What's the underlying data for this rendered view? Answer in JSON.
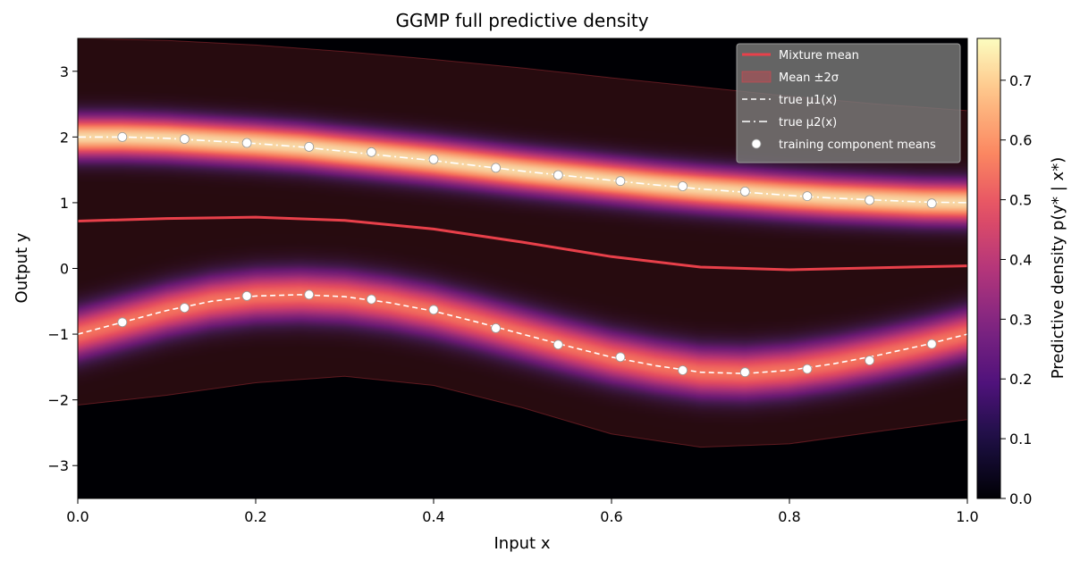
{
  "chart_data": {
    "type": "heatmap",
    "title": "GGMP full predictive density",
    "xlabel": "Input x",
    "ylabel": "Output y",
    "colorbar_label": "Predictive density p(y* | x*)",
    "colormap": "magma",
    "xlim": [
      0.0,
      1.0
    ],
    "ylim": [
      -3.5,
      3.5
    ],
    "clim": [
      0.0,
      0.77
    ],
    "x_ticks": [
      0.0,
      0.2,
      0.4,
      0.6,
      0.8,
      1.0
    ],
    "x_tick_labels": [
      "0.0",
      "0.2",
      "0.4",
      "0.6",
      "0.8",
      "1.0"
    ],
    "y_ticks": [
      -3,
      -2,
      -1,
      0,
      1,
      2,
      3
    ],
    "y_tick_labels": [
      "−3",
      "−2",
      "−1",
      "0",
      "1",
      "2",
      "3"
    ],
    "colorbar_ticks": [
      0.0,
      0.1,
      0.2,
      0.3,
      0.4,
      0.5,
      0.6,
      0.7
    ],
    "colorbar_tick_labels": [
      "0.0",
      "0.1",
      "0.2",
      "0.3",
      "0.4",
      "0.5",
      "0.6",
      "0.7"
    ],
    "legend_position": "top-right",
    "legend": [
      {
        "label": "Mixture mean",
        "style": "solid-line",
        "color": "#e8404a"
      },
      {
        "label": "Mean ±2σ",
        "style": "patch",
        "color": "#e8404a"
      },
      {
        "label": "true μ1(x)",
        "style": "dashed-line",
        "color": "#ffffff"
      },
      {
        "label": "true μ2(x)",
        "style": "dashdot-line",
        "color": "#ffffff"
      },
      {
        "label": "training component means",
        "style": "marker",
        "color": "#ffffff"
      }
    ],
    "series": [
      {
        "name": "Mixture mean",
        "type": "line",
        "x": [
          0.0,
          0.1,
          0.2,
          0.3,
          0.4,
          0.5,
          0.6,
          0.7,
          0.8,
          0.9,
          1.0
        ],
        "y": [
          0.72,
          0.76,
          0.78,
          0.73,
          0.6,
          0.4,
          0.18,
          0.02,
          -0.02,
          0.01,
          0.04
        ]
      },
      {
        "name": "Mean ±2σ",
        "type": "band",
        "x": [
          0.0,
          0.1,
          0.2,
          0.3,
          0.4,
          0.5,
          0.6,
          0.7,
          0.8,
          0.9,
          1.0
        ],
        "upper": [
          3.5,
          3.47,
          3.4,
          3.3,
          3.18,
          3.05,
          2.9,
          2.76,
          2.62,
          2.5,
          2.4
        ],
        "lower": [
          -2.08,
          -1.93,
          -1.74,
          -1.64,
          -1.78,
          -2.12,
          -2.52,
          -2.72,
          -2.67,
          -2.48,
          -2.3
        ]
      },
      {
        "name": "true μ1(x)",
        "type": "line",
        "x": [
          0.0,
          0.05,
          0.1,
          0.15,
          0.2,
          0.25,
          0.3,
          0.35,
          0.4,
          0.45,
          0.5,
          0.55,
          0.6,
          0.65,
          0.7,
          0.75,
          0.8,
          0.85,
          0.9,
          0.95,
          1.0
        ],
        "y": [
          -1.0,
          -0.82,
          -0.64,
          -0.5,
          -0.42,
          -0.4,
          -0.43,
          -0.52,
          -0.65,
          -0.82,
          -1.0,
          -1.18,
          -1.35,
          -1.48,
          -1.58,
          -1.6,
          -1.55,
          -1.45,
          -1.32,
          -1.17,
          -1.0
        ]
      },
      {
        "name": "true μ2(x)",
        "type": "line",
        "x": [
          0.0,
          0.05,
          0.1,
          0.15,
          0.2,
          0.25,
          0.3,
          0.35,
          0.4,
          0.45,
          0.5,
          0.55,
          0.6,
          0.65,
          0.7,
          0.75,
          0.8,
          0.85,
          0.9,
          0.95,
          1.0
        ],
        "y": [
          2.0,
          2.0,
          1.98,
          1.94,
          1.9,
          1.85,
          1.78,
          1.71,
          1.64,
          1.56,
          1.48,
          1.41,
          1.34,
          1.27,
          1.21,
          1.16,
          1.11,
          1.07,
          1.04,
          1.01,
          1.0
        ]
      },
      {
        "name": "training component means",
        "type": "scatter",
        "points": [
          {
            "x": 0.05,
            "y": 2.0
          },
          {
            "x": 0.12,
            "y": 1.97
          },
          {
            "x": 0.19,
            "y": 1.91
          },
          {
            "x": 0.26,
            "y": 1.85
          },
          {
            "x": 0.33,
            "y": 1.77
          },
          {
            "x": 0.4,
            "y": 1.66
          },
          {
            "x": 0.47,
            "y": 1.53
          },
          {
            "x": 0.54,
            "y": 1.42
          },
          {
            "x": 0.61,
            "y": 1.33
          },
          {
            "x": 0.68,
            "y": 1.25
          },
          {
            "x": 0.75,
            "y": 1.17
          },
          {
            "x": 0.82,
            "y": 1.1
          },
          {
            "x": 0.89,
            "y": 1.04
          },
          {
            "x": 0.96,
            "y": 0.99
          },
          {
            "x": 0.05,
            "y": -0.82
          },
          {
            "x": 0.12,
            "y": -0.6
          },
          {
            "x": 0.19,
            "y": -0.42
          },
          {
            "x": 0.26,
            "y": -0.4
          },
          {
            "x": 0.33,
            "y": -0.47
          },
          {
            "x": 0.4,
            "y": -0.63
          },
          {
            "x": 0.47,
            "y": -0.91
          },
          {
            "x": 0.54,
            "y": -1.16
          },
          {
            "x": 0.61,
            "y": -1.35
          },
          {
            "x": 0.68,
            "y": -1.55
          },
          {
            "x": 0.75,
            "y": -1.58
          },
          {
            "x": 0.82,
            "y": -1.53
          },
          {
            "x": 0.89,
            "y": -1.4
          },
          {
            "x": 0.96,
            "y": -1.15
          }
        ]
      }
    ],
    "density_components": [
      {
        "mean_series": "true μ1(x)",
        "sigma": 0.26,
        "peak": 0.56
      },
      {
        "mean_series": "true μ2(x)",
        "sigma": 0.22,
        "peak": 0.76
      }
    ]
  }
}
